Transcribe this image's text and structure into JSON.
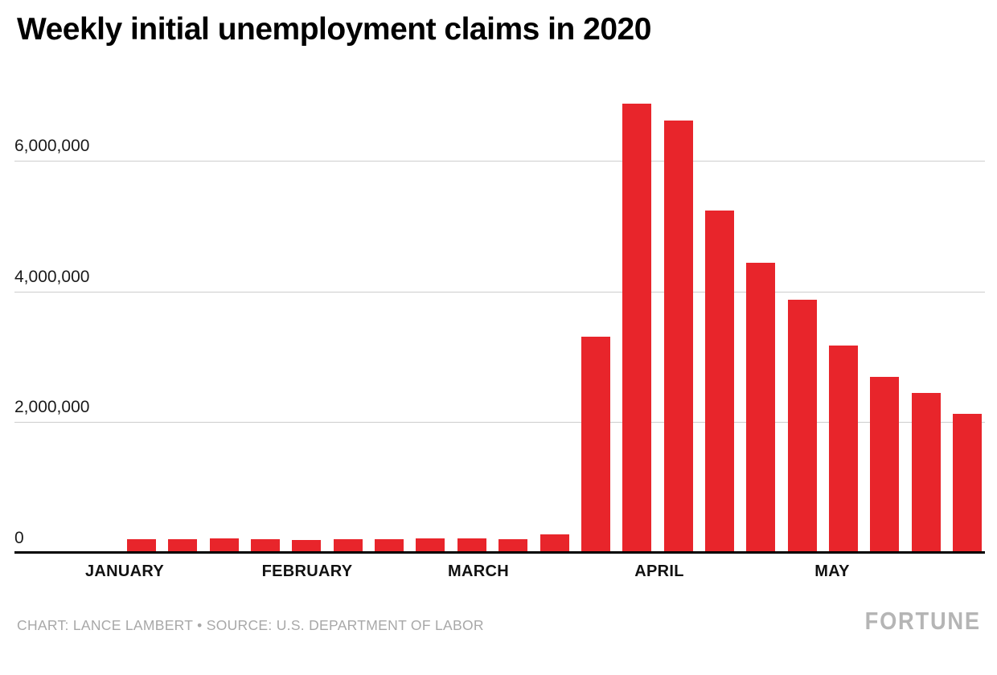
{
  "header": {
    "title": "Weekly initial unemployment claims in 2020"
  },
  "footer": {
    "credit": "CHART: LANCE LAMBERT • SOURCE: U.S. DEPARTMENT OF LABOR",
    "brand": "FORTUNE"
  },
  "chart_data": {
    "type": "bar",
    "title": "Weekly initial unemployment claims in 2020",
    "values": [
      214000,
      207000,
      220000,
      212000,
      201000,
      204000,
      215000,
      219000,
      217000,
      211000,
      282000,
      3307000,
      6867000,
      6615000,
      5237000,
      4442000,
      3867000,
      3176000,
      2687000,
      2446000,
      2123000
    ],
    "x_tick_labels": [
      "JANUARY",
      "FEBRUARY",
      "MARCH",
      "APRIL",
      "MAY"
    ],
    "y_ticks": [
      {
        "value": 0,
        "label": "0"
      },
      {
        "value": 2000000,
        "label": "2,000,000"
      },
      {
        "value": 4000000,
        "label": "4,000,000"
      },
      {
        "value": 6000000,
        "label": "6,000,000"
      }
    ],
    "ylim": [
      0,
      7050000
    ],
    "grid": "horizontal",
    "legend": "none",
    "bar_color": "#e8252b",
    "colors": {
      "axis_line": "#000000",
      "gridline": "#cdcdcd",
      "tick_text": "#1a1a1a",
      "credit_text": "#a8a8a8",
      "brand_text": "#b5b5b5",
      "background": "#ffffff"
    }
  }
}
